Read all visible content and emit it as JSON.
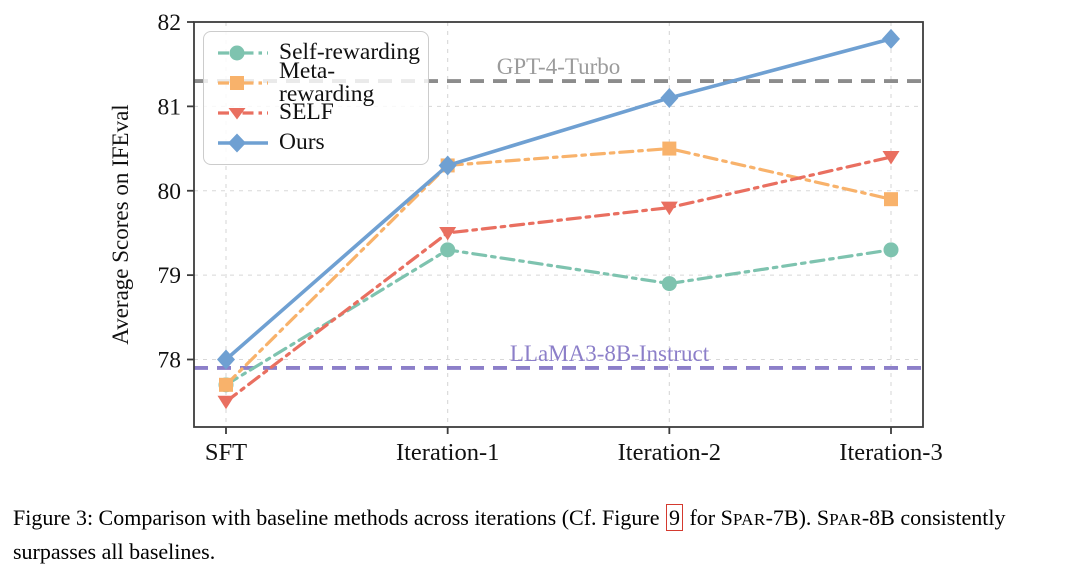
{
  "chart_data": {
    "type": "line",
    "title": "",
    "xlabel": "",
    "ylabel": "Average Scores on IFEval",
    "categories": [
      "SFT",
      "Iteration-1",
      "Iteration-2",
      "Iteration-3"
    ],
    "yticks": [
      78,
      79,
      80,
      81,
      82
    ],
    "ylim": [
      77.2,
      82.0
    ],
    "grid": true,
    "legend_position": "upper-left",
    "series": [
      {
        "name": "Self-rewarding",
        "color": "#7EC3AF",
        "marker": "circle",
        "linestyle": "dashdot",
        "values": [
          77.7,
          79.3,
          78.9,
          79.3
        ]
      },
      {
        "name": "Meta-rewarding",
        "color": "#F8B26B",
        "marker": "square",
        "linestyle": "dashdot",
        "values": [
          77.7,
          80.3,
          80.5,
          79.9
        ]
      },
      {
        "name": "SELF",
        "color": "#E96F60",
        "marker": "triangle-down",
        "linestyle": "dashdot",
        "values": [
          77.5,
          79.5,
          79.8,
          80.4
        ]
      },
      {
        "name": "Ours",
        "color": "#6FA0D2",
        "marker": "diamond",
        "linestyle": "solid",
        "values": [
          78.0,
          80.3,
          81.1,
          81.8
        ]
      }
    ],
    "reference_lines": [
      {
        "label": "GPT-4-Turbo",
        "value": 81.3,
        "color": "#8C8C8C",
        "label_color": "#9B9B9B",
        "label_x_frac": 0.5
      },
      {
        "label": "LLaMA3-8B-Instruct",
        "value": 77.9,
        "color": "#8C7FC9",
        "label_color": "#8C7FC9",
        "label_x_frac": 0.57
      }
    ],
    "axis_color": "#3C3C3C",
    "grid_color": "#D8D8D8",
    "tick_label_color": "#111111"
  },
  "caption": {
    "segments": [
      {
        "text": "Figure 3: Comparison with baseline methods across iterations (Cf. Figure "
      },
      {
        "text": "9",
        "style": "ref"
      },
      {
        "text": " for "
      },
      {
        "text": "SPAR-7B",
        "style": "smallcaps"
      },
      {
        "text": "). ",
        "style": ""
      },
      {
        "text": "SPAR-8B",
        "style": "smallcaps"
      },
      {
        "text": " consistently surpasses all baselines.",
        "style": ""
      }
    ]
  }
}
